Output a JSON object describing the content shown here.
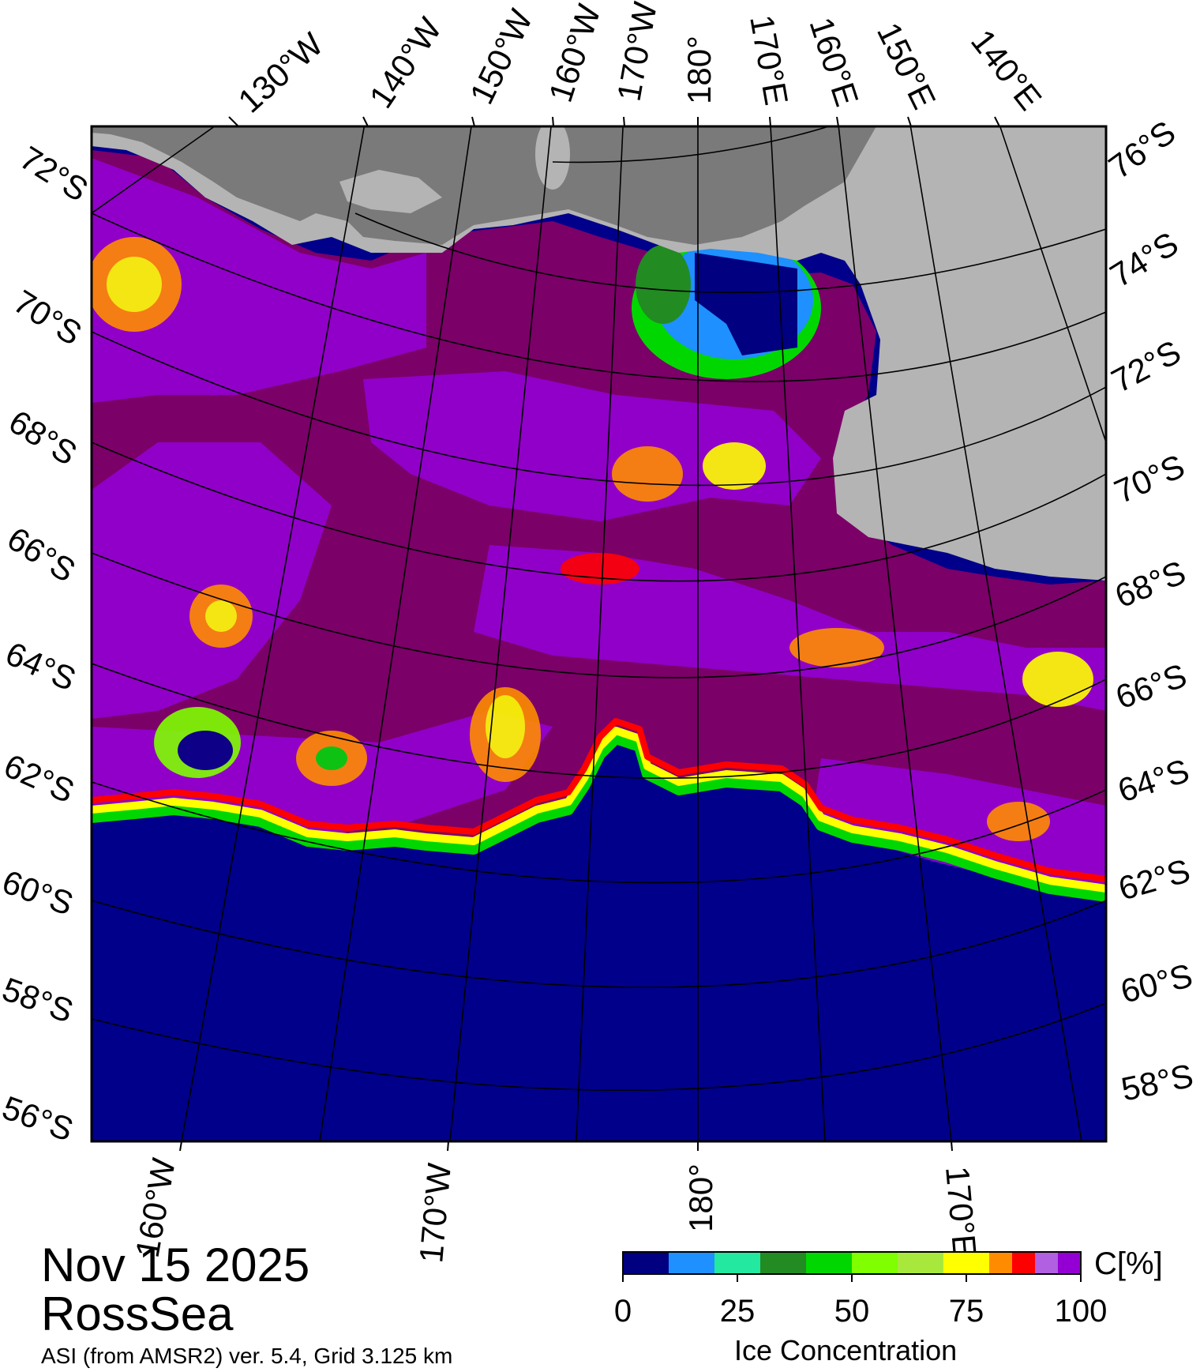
{
  "header": {
    "date": "Nov 15 2025",
    "region": "RossSea",
    "source": "ASI (from AMSR2) ver. 5.4,  Grid 3.125 km"
  },
  "map": {
    "top_lon_labels": [
      "130°W",
      "140°W",
      "150°W",
      "160°W",
      "170°W",
      "180°",
      "170°E",
      "160°E",
      "150°E",
      "140°E"
    ],
    "bottom_lon_labels": [
      "160°W",
      "170°W",
      "180°",
      "170°E"
    ],
    "left_lat_labels": [
      "72°S",
      "70°S",
      "68°S",
      "66°S",
      "64°S",
      "62°S",
      "60°S",
      "58°S",
      "56°S"
    ],
    "right_lat_labels": [
      "76°S",
      "74°S",
      "72°S",
      "70°S",
      "68°S",
      "66°S",
      "64°S",
      "62°S",
      "60°S",
      "58°S"
    ],
    "colors": {
      "open_water": "#00008b",
      "land": "#b4b4b4",
      "ice_shelf": "#7a7a7a",
      "full_ice": "#7b0068",
      "high_ice": "#9400d3"
    }
  },
  "colorbar": {
    "unit": "C[%]",
    "title": "Ice Concentration",
    "ticks": [
      "0",
      "25",
      "50",
      "75",
      "100"
    ],
    "colors": [
      "#000080",
      "#1e90ff",
      "#22e8a0",
      "#228b22",
      "#00d700",
      "#80ff00",
      "#a8e83c",
      "#ffff00",
      "#ff8c00",
      "#ff0000",
      "#b060e0",
      "#9400d3"
    ]
  }
}
